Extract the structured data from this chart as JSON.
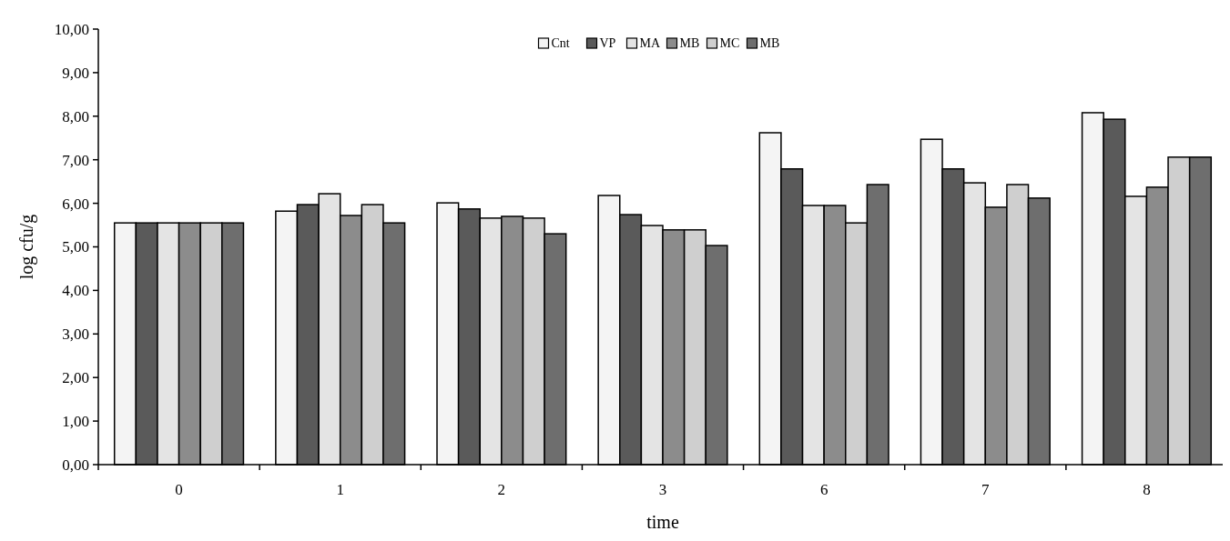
{
  "chart_data": {
    "type": "bar",
    "xlabel": "time",
    "ylabel": "log cfu/g",
    "categories": [
      "0",
      "1",
      "2",
      "3",
      "6",
      "7",
      "8"
    ],
    "series": [
      {
        "name": "Cnt",
        "color": "#f4f4f4",
        "values": [
          5.55,
          5.82,
          6.01,
          6.18,
          7.62,
          7.47,
          8.08
        ]
      },
      {
        "name": "VP",
        "color": "#5a5a5a",
        "values": [
          5.55,
          5.97,
          5.87,
          5.74,
          6.79,
          6.79,
          7.93
        ]
      },
      {
        "name": "MA",
        "color": "#e4e4e4",
        "values": [
          5.55,
          6.22,
          5.66,
          5.49,
          5.95,
          6.47,
          6.16
        ]
      },
      {
        "name": "MB",
        "color": "#8c8c8c",
        "values": [
          5.55,
          5.72,
          5.7,
          5.39,
          5.95,
          5.91,
          6.37
        ]
      },
      {
        "name": "MC",
        "color": "#cfcfcf",
        "values": [
          5.55,
          5.97,
          5.66,
          5.39,
          5.55,
          6.43,
          7.06
        ]
      },
      {
        "name": "MB",
        "color": "#6e6e6e",
        "values": [
          5.55,
          5.55,
          5.3,
          5.03,
          6.43,
          6.12,
          7.06
        ]
      }
    ],
    "ylim": [
      0,
      10
    ],
    "yticks": [
      {
        "value": 0,
        "label": "0,00"
      },
      {
        "value": 1,
        "label": "1,00"
      },
      {
        "value": 2,
        "label": "2,00"
      },
      {
        "value": 3,
        "label": "3,00"
      },
      {
        "value": 4,
        "label": "4,00"
      },
      {
        "value": 5,
        "label": "5,00"
      },
      {
        "value": 6,
        "label": "6,00"
      },
      {
        "value": 7,
        "label": "7,00"
      },
      {
        "value": 8,
        "label": "8,00"
      },
      {
        "value": 9,
        "label": "9,00"
      },
      {
        "value": 10,
        "label": "10,00"
      }
    ],
    "legend": "top",
    "grid": false
  }
}
